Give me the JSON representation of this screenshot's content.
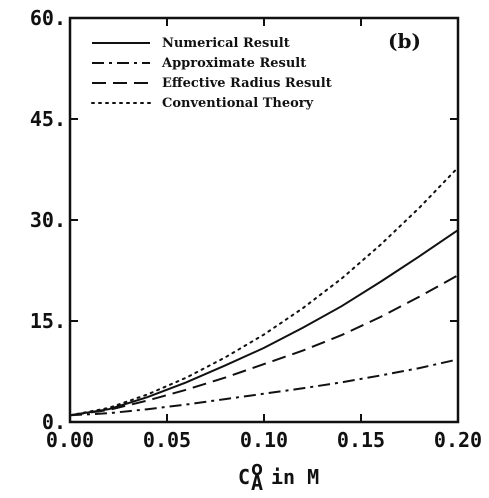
{
  "chart_data": {
    "type": "line",
    "panel_label": "(b)",
    "xlabel": {
      "symbol": "C",
      "superscript": "o",
      "subscript": "A",
      "suffix": "in M"
    },
    "ylabel": "",
    "xlim": [
      0.0,
      0.2
    ],
    "ylim": [
      0.0,
      60.0
    ],
    "x_ticks": [
      0.0,
      0.05,
      0.1,
      0.15,
      0.2
    ],
    "x_tick_labels": [
      "0.00",
      "0.05",
      "0.10",
      "0.15",
      "0.20"
    ],
    "y_ticks": [
      0,
      15,
      30,
      45,
      60
    ],
    "y_tick_labels": [
      "0.",
      "15.",
      "30.",
      "45.",
      "60."
    ],
    "grid": false,
    "legend_position": "top-left",
    "x": [
      0.0,
      0.02,
      0.04,
      0.06,
      0.08,
      0.1,
      0.12,
      0.14,
      0.16,
      0.18,
      0.2
    ],
    "series": [
      {
        "name": "Numerical Result",
        "dash": "solid",
        "values": [
          1.0,
          1.9,
          3.7,
          5.9,
          8.4,
          11.0,
          14.0,
          17.2,
          20.8,
          24.6,
          28.5
        ]
      },
      {
        "name": "Approximate Result",
        "dash": "dashdot",
        "values": [
          1.0,
          1.3,
          1.9,
          2.6,
          3.4,
          4.2,
          5.0,
          5.9,
          6.9,
          8.0,
          9.3
        ]
      },
      {
        "name": "Effective Radius Result",
        "dash": "dashed",
        "values": [
          1.0,
          1.8,
          3.2,
          4.8,
          6.6,
          8.6,
          10.6,
          12.9,
          15.6,
          18.6,
          21.8
        ]
      },
      {
        "name": "Conventional Theory",
        "dash": "dotted",
        "values": [
          1.0,
          2.1,
          4.1,
          6.6,
          9.6,
          13.0,
          16.9,
          21.3,
          26.3,
          31.8,
          37.8
        ]
      }
    ]
  }
}
